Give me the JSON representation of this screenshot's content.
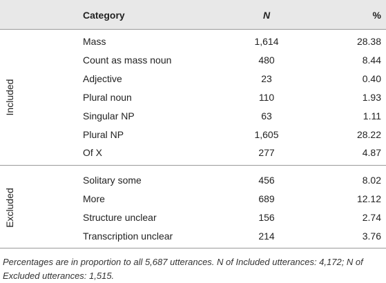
{
  "table": {
    "header": [
      "Category",
      "N",
      "%"
    ],
    "groups": [
      {
        "label": "Included",
        "rows": [
          [
            "Mass",
            "1,614",
            "28.38"
          ],
          [
            "Count as mass noun",
            "480",
            "8.44"
          ],
          [
            "Adjective",
            "23",
            "0.40"
          ],
          [
            "Plural noun",
            "110",
            "1.93"
          ],
          [
            "Singular NP",
            "63",
            "1.11"
          ],
          [
            "Plural NP",
            "1,605",
            "28.22"
          ],
          [
            "Of X",
            "277",
            "4.87"
          ]
        ]
      },
      {
        "label": "Excluded",
        "rows": [
          [
            "Solitary some",
            "456",
            "8.02"
          ],
          [
            "More",
            "689",
            "12.12"
          ],
          [
            "Structure unclear",
            "156",
            "2.74"
          ],
          [
            "Transcription unclear",
            "214",
            "3.76"
          ]
        ]
      }
    ],
    "footnote": "Percentages are in proportion to all 5,687 utterances. N of Included utterances: 4,172; N of Excluded utterances: 1,515."
  }
}
